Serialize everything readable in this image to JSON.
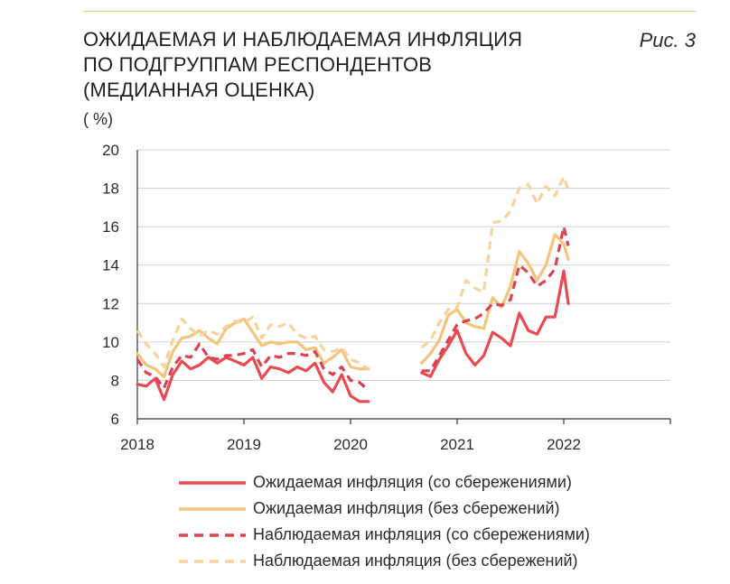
{
  "header": {
    "title_lines": [
      "ОЖИДАЕМАЯ И НАБЛЮДАЕМАЯ ИНФЛЯЦИЯ",
      "ПО ПОДГРУППАМ РЕСПОНДЕНТОВ",
      "(МЕДИАННАЯ ОЦЕНКА)"
    ],
    "figure_label": "Рис. 3",
    "unit": "( %)"
  },
  "colors": {
    "red": "#e84a4f",
    "orange": "#f3c47c",
    "red_dashed": "#d94452",
    "orange_dashed": "#f7d29b",
    "grid": "#cfcfcf",
    "axis": "#333333",
    "top_rule": "#e7c77c"
  },
  "chart_data": {
    "type": "line",
    "title": "ОЖИДАЕМАЯ И НАБЛЮДАЕМАЯ ИНФЛЯЦИЯ ПО ПОДГРУППАМ РЕСПОНДЕНТОВ (МЕДИАННАЯ ОЦЕНКА)",
    "ylabel": "( %)",
    "xlabel": "",
    "ylim": [
      6,
      20
    ],
    "xlim": [
      2018,
      2023
    ],
    "yticks": [
      6,
      8,
      10,
      12,
      14,
      16,
      18,
      20
    ],
    "xticks": [
      2018,
      2019,
      2020,
      2021,
      2022
    ],
    "grid": "horizontal",
    "series": [
      {
        "name": "Ожидаемая инфляция (со сбережениями)",
        "color_key": "red",
        "style": "solid",
        "x": [
          2018.0,
          2018.083,
          2018.167,
          2018.25,
          2018.333,
          2018.417,
          2018.5,
          2018.583,
          2018.667,
          2018.75,
          2018.833,
          2018.917,
          2019.0,
          2019.083,
          2019.167,
          2019.25,
          2019.333,
          2019.417,
          2019.5,
          2019.583,
          2019.667,
          2019.75,
          2019.833,
          2019.917,
          2020.0,
          2020.083,
          2020.167,
          null,
          2020.667,
          2020.75,
          2020.833,
          2020.917,
          2021.0,
          2021.083,
          2021.167,
          2021.25,
          2021.333,
          2021.417,
          2021.5,
          2021.583,
          2021.667,
          2021.75,
          2021.833,
          2021.917,
          2022.0,
          2022.042
        ],
        "values": [
          7.8,
          7.7,
          8.1,
          7.0,
          8.3,
          9.0,
          8.6,
          8.8,
          9.2,
          8.9,
          9.2,
          9.0,
          8.8,
          9.2,
          8.1,
          8.7,
          8.6,
          8.4,
          8.7,
          8.5,
          8.9,
          7.9,
          7.4,
          8.3,
          7.2,
          6.9,
          6.9,
          null,
          8.4,
          8.2,
          9.1,
          9.8,
          10.6,
          9.4,
          8.8,
          9.3,
          10.5,
          10.2,
          9.8,
          11.5,
          10.6,
          10.4,
          11.3,
          11.3,
          13.7,
          12.0
        ]
      },
      {
        "name": "Ожидаемая инфляция (без сбережений)",
        "color_key": "orange",
        "style": "solid",
        "x": [
          2018.0,
          2018.083,
          2018.167,
          2018.25,
          2018.333,
          2018.417,
          2018.5,
          2018.583,
          2018.667,
          2018.75,
          2018.833,
          2018.917,
          2019.0,
          2019.083,
          2019.167,
          2019.25,
          2019.333,
          2019.417,
          2019.5,
          2019.583,
          2019.667,
          2019.75,
          2019.833,
          2019.917,
          2020.0,
          2020.083,
          2020.167,
          null,
          2020.667,
          2020.75,
          2020.833,
          2020.917,
          2021.0,
          2021.083,
          2021.167,
          2021.25,
          2021.333,
          2021.417,
          2021.5,
          2021.583,
          2021.667,
          2021.75,
          2021.833,
          2021.917,
          2022.0,
          2022.042
        ],
        "values": [
          9.4,
          8.8,
          8.6,
          8.2,
          9.5,
          10.2,
          10.3,
          10.6,
          10.2,
          9.9,
          10.7,
          11.0,
          11.2,
          10.5,
          9.8,
          10.0,
          9.9,
          10.0,
          10.0,
          9.6,
          9.7,
          8.9,
          9.2,
          9.6,
          8.7,
          8.6,
          8.6,
          null,
          8.9,
          9.4,
          10.1,
          11.4,
          11.7,
          11.0,
          10.8,
          10.7,
          12.3,
          11.8,
          12.9,
          14.7,
          14.1,
          13.2,
          14.0,
          15.6,
          15.1,
          14.3
        ]
      },
      {
        "name": "Наблюдаемая инфляция (со сбережениями)",
        "color_key": "red_dashed",
        "style": "dashed",
        "x": [
          2018.0,
          2018.083,
          2018.167,
          2018.25,
          2018.333,
          2018.417,
          2018.5,
          2018.583,
          2018.667,
          2018.75,
          2018.833,
          2018.917,
          2019.0,
          2019.083,
          2019.167,
          2019.25,
          2019.333,
          2019.417,
          2019.5,
          2019.583,
          2019.667,
          2019.75,
          2019.833,
          2019.917,
          2020.0,
          2020.083,
          2020.167,
          null,
          2020.667,
          2020.75,
          2020.833,
          2020.917,
          2021.0,
          2021.083,
          2021.167,
          2021.25,
          2021.333,
          2021.417,
          2021.5,
          2021.583,
          2021.667,
          2021.75,
          2021.833,
          2021.917,
          2022.0,
          2022.042
        ],
        "values": [
          9.1,
          8.4,
          8.2,
          7.6,
          8.7,
          9.3,
          9.2,
          9.9,
          9.2,
          9.1,
          9.3,
          9.3,
          9.4,
          9.6,
          8.7,
          9.3,
          9.2,
          9.4,
          9.4,
          9.3,
          9.5,
          8.6,
          8.3,
          8.7,
          8.0,
          7.9,
          7.5,
          null,
          8.5,
          8.5,
          9.3,
          10.1,
          10.9,
          11.1,
          11.2,
          11.5,
          12.0,
          11.9,
          12.2,
          14.0,
          13.6,
          12.9,
          13.2,
          13.8,
          16.0,
          15.0
        ]
      },
      {
        "name": "Наблюдаемая инфляция (без сбережений)",
        "color_key": "orange_dashed",
        "style": "dashed",
        "x": [
          2018.0,
          2018.083,
          2018.167,
          2018.25,
          2018.333,
          2018.417,
          2018.5,
          2018.583,
          2018.667,
          2018.75,
          2018.833,
          2018.917,
          2019.0,
          2019.083,
          2019.167,
          2019.25,
          2019.333,
          2019.417,
          2019.5,
          2019.583,
          2019.667,
          2019.75,
          2019.833,
          2019.917,
          2020.0,
          2020.083,
          2020.167,
          null,
          2020.667,
          2020.75,
          2020.833,
          2020.917,
          2021.0,
          2021.083,
          2021.167,
          2021.25,
          2021.333,
          2021.417,
          2021.5,
          2021.583,
          2021.667,
          2021.75,
          2021.833,
          2021.917,
          2022.0,
          2022.042
        ],
        "values": [
          10.6,
          9.9,
          9.4,
          8.7,
          10.1,
          11.2,
          10.7,
          10.3,
          10.6,
          10.4,
          10.8,
          11.1,
          11.0,
          11.3,
          10.2,
          10.9,
          10.8,
          11.0,
          10.4,
          10.2,
          10.3,
          9.6,
          9.5,
          9.7,
          9.1,
          8.9,
          8.6,
          null,
          9.7,
          10.1,
          11.0,
          11.7,
          11.8,
          13.2,
          12.8,
          12.6,
          16.2,
          16.3,
          16.8,
          18.0,
          18.2,
          17.2,
          18.1,
          17.6,
          18.6,
          17.9
        ]
      }
    ]
  }
}
